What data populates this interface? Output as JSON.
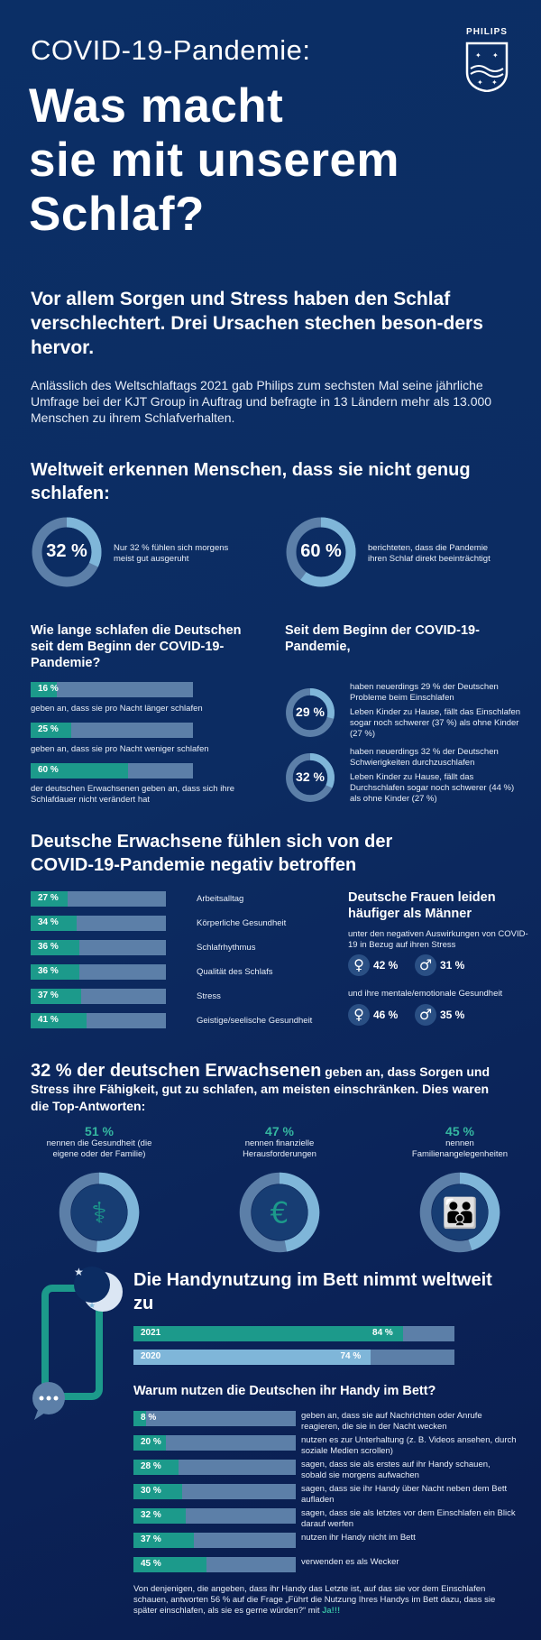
{
  "brand": "PHILIPS",
  "header": {
    "kicker": "COVID-19-Pandemie:",
    "title_lines": [
      "Was macht",
      "sie mit unserem",
      "Schlaf?"
    ]
  },
  "intro": {
    "lead": "Vor allem Sorgen und Stress haben den Schlaf verschlechtert. Drei Ursachen stechen beson-ders hervor.",
    "text": "Anlässlich des Weltschlaftags 2021 gab Philips zum sechsten Mal seine jährliche Umfrage bei der KJT Group in Auftrag und befragte in 13 Ländern mehr als 13.000 Menschen zu ihrem Schlafverhalten."
  },
  "worldwide": {
    "heading": "Weltweit erkennen Menschen, dass sie nicht genug schlafen:",
    "stats": [
      {
        "value": "32 %",
        "fraction": 0.32,
        "text": "Nur 32 % fühlen sich morgens meist gut ausgeruht"
      },
      {
        "value": "60 %",
        "fraction": 0.6,
        "text": "berichteten, dass die Pandemie ihren Schlaf direkt beeinträchtigt"
      }
    ]
  },
  "sleep_duration": {
    "heading": "Wie lange schlafen die Deutschen seit dem Beginn der COVID-19-Pandemie?",
    "bars": [
      {
        "value": "16 %",
        "fraction": 0.16,
        "text": "geben an, dass sie pro Nacht länger schlafen"
      },
      {
        "value": "25 %",
        "fraction": 0.25,
        "text": "geben an, dass sie pro Nacht weniger schlafen"
      },
      {
        "value": "60 %",
        "fraction": 0.6,
        "text": "der deutschen Erwachsenen geben an, dass sich ihre Schlafdauer nicht verändert hat"
      }
    ]
  },
  "since_start": {
    "heading": "Seit dem Beginn der COVID-19-Pandemie,",
    "stats": [
      {
        "value": "29 %",
        "fraction": 0.29,
        "line1": "haben neuerdings 29 % der Deutschen Probleme beim Einschlafen",
        "line2": "Leben Kinder zu Hause, fällt das Einschlafen sogar noch schwerer (37 %) als ohne Kinder (27 %)"
      },
      {
        "value": "32 %",
        "fraction": 0.32,
        "line1": "haben neuerdings 32 % der Deutschen Schwierigkeiten durchzuschlafen",
        "line2": "Leben Kinder zu Hause, fällt das Durchschlafen sogar noch schwerer (44 %) als ohne Kinder (27 %)"
      }
    ]
  },
  "affected": {
    "heading": "Deutsche Erwachsene fühlen sich von der COVID-19-Pandemie negativ betroffen",
    "bars": [
      {
        "value": "27 %",
        "fraction": 0.27,
        "label": "Arbeitsalltag"
      },
      {
        "value": "34 %",
        "fraction": 0.34,
        "label": "Körperliche Gesundheit"
      },
      {
        "value": "36 %",
        "fraction": 0.36,
        "label": "Schlafrhythmus"
      },
      {
        "value": "36 %",
        "fraction": 0.36,
        "label": "Qualität des Schlafs"
      },
      {
        "value": "37 %",
        "fraction": 0.37,
        "label": "Stress"
      },
      {
        "value": "41 %",
        "fraction": 0.41,
        "label": "Geistige/seelische Gesundheit"
      }
    ]
  },
  "women": {
    "heading": "Deutsche Frauen leiden häufiger als Männer",
    "q1": "unter den negativen Auswirkungen von COVID-19 in Bezug auf ihren Stress",
    "q1_female": "42 %",
    "q1_male": "31 %",
    "q2": "und ihre mentale/emotionale Gesundheit",
    "q2_female": "46 %",
    "q2_male": "35 %"
  },
  "top_answers": {
    "heading_bold": "32 % der deutschen Erwachsenen",
    "heading_rest": " geben an, dass Sorgen und Stress ihre Fähigkeit, gut zu schlafen, am meisten einschränken. Dies waren die Top-Antworten:",
    "items": [
      {
        "value": "51 %",
        "fraction": 0.51,
        "text": "nennen die Gesundheit (die eigene oder der Familie)",
        "icon": "stethoscope-icon"
      },
      {
        "value": "47 %",
        "fraction": 0.47,
        "text": "nennen finanzielle Herausforderungen",
        "icon": "euro-icon"
      },
      {
        "value": "45 %",
        "fraction": 0.45,
        "text": "nennen Familienangelegenheiten",
        "icon": "family-icon"
      }
    ]
  },
  "phone": {
    "heading": "Die Handynutzung im Bett nimmt weltweit zu",
    "years": [
      {
        "year": "2021",
        "value": "84 %",
        "fraction": 0.84
      },
      {
        "year": "2020",
        "value": "74 %",
        "fraction": 0.74
      }
    ],
    "why_heading": "Warum nutzen die Deutschen ihr Handy im Bett?",
    "reasons": [
      {
        "value": "8 %",
        "fraction": 0.08,
        "text": "geben an, dass sie auf Nachrichten oder Anrufe reagieren, die sie in der Nacht wecken"
      },
      {
        "value": "20 %",
        "fraction": 0.2,
        "text": "nutzen es zur Unterhaltung (z. B. Videos ansehen, durch soziale Medien scrollen)"
      },
      {
        "value": "28 %",
        "fraction": 0.28,
        "text": "sagen, dass sie als erstes auf ihr Handy schauen, sobald sie morgens aufwachen"
      },
      {
        "value": "30 %",
        "fraction": 0.3,
        "text": "sagen, dass sie ihr Handy über Nacht neben dem Bett aufladen"
      },
      {
        "value": "32 %",
        "fraction": 0.32,
        "text": "sagen, dass sie als letztes vor dem Einschlafen ein Blick darauf werfen"
      },
      {
        "value": "37 %",
        "fraction": 0.37,
        "text": "nutzen ihr Handy nicht im Bett"
      },
      {
        "value": "45 %",
        "fraction": 0.45,
        "text": "verwenden es als Wecker"
      }
    ],
    "footer_text": "Von denjenigen, die angeben, dass ihr Handy das Letzte ist, auf das sie vor dem Einschlafen schauen, antworten 56 % auf die Frage „Führt die Nutzung Ihres Handys im Bett dazu, dass sie später einschlafen, als sie es gerne würden?“ mit",
    "footer_answer": "Ja!!!"
  },
  "colors": {
    "teal": "#1c9a8b",
    "track": "#5c7fa8",
    "light": "#7fb6d9",
    "background": "#0b2b63"
  }
}
